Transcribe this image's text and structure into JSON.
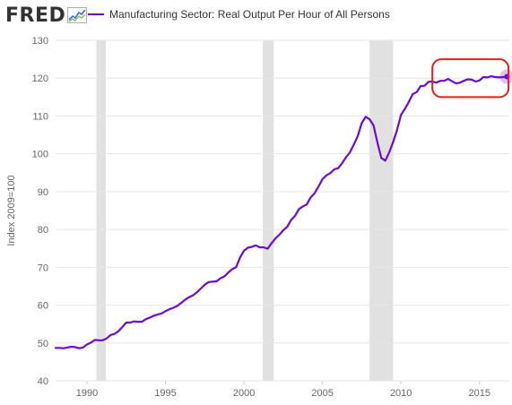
{
  "header": {
    "logo_text": "FRED",
    "legend_label": "Manufacturing Sector: Real Output Per Hour of All Persons"
  },
  "colors": {
    "series": "#6a0dcf",
    "recession": "#e1e1e1",
    "grid": "#e6e6e6",
    "highlight": "#e02020"
  },
  "chart_data": {
    "type": "line",
    "ylabel": "Index 2009=100",
    "xlim": [
      1988,
      2016.9
    ],
    "ylim": [
      40,
      130
    ],
    "y_ticks": [
      "40",
      "50",
      "60",
      "70",
      "80",
      "90",
      "100",
      "110",
      "120",
      "130"
    ],
    "x_ticks": [
      "1990",
      "1995",
      "2000",
      "2005",
      "2010",
      "2015"
    ],
    "grid": true,
    "recessions": [
      [
        1990.6,
        1991.2
      ],
      [
        2001.2,
        2001.9
      ],
      [
        2008.0,
        2009.5
      ]
    ],
    "series": [
      {
        "name": "Manufacturing Sector: Real Output Per Hour of All Persons",
        "x": [
          1988.0,
          1988.25,
          1988.5,
          1988.75,
          1989.0,
          1989.25,
          1989.5,
          1989.75,
          1990.0,
          1990.25,
          1990.5,
          1990.75,
          1991.0,
          1991.25,
          1991.5,
          1991.75,
          1992.0,
          1992.25,
          1992.5,
          1992.75,
          1993.0,
          1993.25,
          1993.5,
          1993.75,
          1994.0,
          1994.25,
          1994.5,
          1994.75,
          1995.0,
          1995.25,
          1995.5,
          1995.75,
          1996.0,
          1996.25,
          1996.5,
          1996.75,
          1997.0,
          1997.25,
          1997.5,
          1997.75,
          1998.0,
          1998.25,
          1998.5,
          1998.75,
          1999.0,
          1999.25,
          1999.5,
          1999.75,
          2000.0,
          2000.25,
          2000.5,
          2000.75,
          2001.0,
          2001.25,
          2001.5,
          2001.75,
          2002.0,
          2002.25,
          2002.5,
          2002.75,
          2003.0,
          2003.25,
          2003.5,
          2003.75,
          2004.0,
          2004.25,
          2004.5,
          2004.75,
          2005.0,
          2005.25,
          2005.5,
          2005.75,
          2006.0,
          2006.25,
          2006.5,
          2006.75,
          2007.0,
          2007.25,
          2007.5,
          2007.75,
          2008.0,
          2008.25,
          2008.5,
          2008.75,
          2009.0,
          2009.25,
          2009.5,
          2009.75,
          2010.0,
          2010.25,
          2010.5,
          2010.75,
          2011.0,
          2011.25,
          2011.5,
          2011.75,
          2012.0,
          2012.25,
          2012.5,
          2012.75,
          2013.0,
          2013.25,
          2013.5,
          2013.75,
          2014.0,
          2014.25,
          2014.5,
          2014.75,
          2015.0,
          2015.25,
          2015.5,
          2015.75,
          2016.0,
          2016.25,
          2016.5,
          2016.75
        ],
        "values": [
          48.7,
          48.7,
          48.6,
          48.8,
          49.0,
          48.9,
          48.6,
          48.8,
          49.6,
          50.1,
          50.8,
          50.7,
          50.7,
          51.2,
          52.1,
          52.4,
          53.1,
          54.2,
          55.4,
          55.4,
          55.7,
          55.6,
          55.6,
          56.3,
          56.7,
          57.2,
          57.5,
          57.8,
          58.4,
          58.9,
          59.3,
          59.8,
          60.6,
          61.4,
          62.1,
          62.6,
          63.4,
          64.4,
          65.4,
          66.1,
          66.2,
          66.3,
          67.1,
          67.6,
          68.6,
          69.5,
          70.0,
          72.6,
          74.4,
          75.2,
          75.4,
          75.8,
          75.3,
          75.3,
          74.9,
          76.3,
          77.6,
          78.6,
          79.8,
          80.7,
          82.5,
          83.6,
          85.4,
          86.1,
          86.6,
          88.5,
          89.6,
          91.4,
          93.3,
          94.3,
          94.9,
          95.9,
          96.2,
          97.5,
          99.1,
          100.4,
          102.5,
          104.7,
          108.1,
          109.8,
          109.1,
          107.5,
          103.0,
          98.9,
          98.2,
          100.4,
          103.1,
          106.3,
          110.3,
          111.9,
          113.7,
          115.8,
          116.3,
          117.9,
          118.0,
          119.0,
          119.1,
          118.8,
          119.3,
          119.3,
          119.8,
          119.2,
          118.6,
          118.8,
          119.3,
          119.7,
          119.6,
          119.1,
          119.4,
          120.3,
          120.2,
          120.5,
          120.3,
          120.2,
          120.3,
          120.4
        ]
      }
    ]
  },
  "annotation": {
    "highlight_box": {
      "x_start": 2012.0,
      "x_end": 2016.85,
      "y_start": 115.0,
      "y_end": 125.0
    },
    "last_point": {
      "x": 2016.75,
      "y": 120.4
    }
  }
}
